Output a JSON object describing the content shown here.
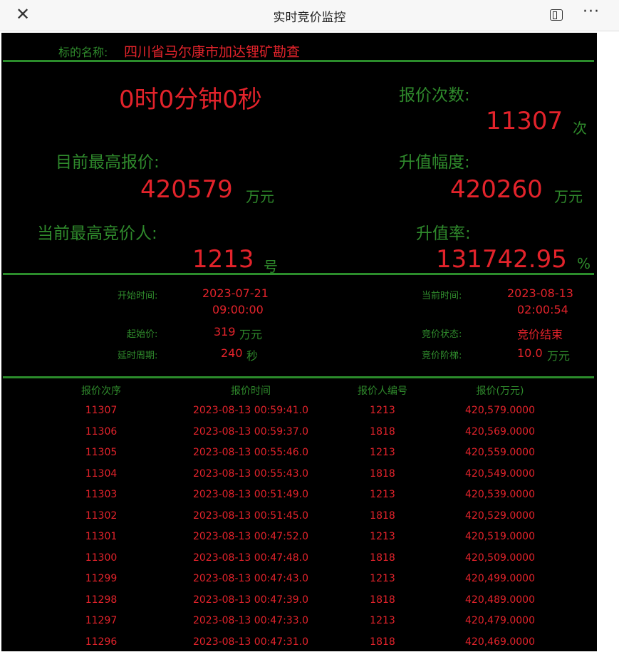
{
  "window": {
    "title": "实时竞价监控",
    "close_icon": "close-icon",
    "panel_icon": "sidebar-icon",
    "more_icon": "more-icon"
  },
  "subject": {
    "label": "标的名称:",
    "value": "四川省马尔康市加达锂矿勘查"
  },
  "countdown": "0时0分钟0秒",
  "bid_count": {
    "label": "报价次数:",
    "value": "11307",
    "unit": "次"
  },
  "highest_bid": {
    "label": "目前最高报价:",
    "value": "420579",
    "unit": "万元"
  },
  "increase": {
    "label": "升值幅度:",
    "value": "420260",
    "unit": "万元"
  },
  "highest_bidder": {
    "label": "当前最高竞价人:",
    "value": "1213",
    "unit": "号"
  },
  "increase_rate": {
    "label": "升值率:",
    "value": "131742.95",
    "unit": "%"
  },
  "info": {
    "start_time": {
      "label": "开始时间:",
      "date": "2023-07-21",
      "time": "09:00:00"
    },
    "current_time": {
      "label": "当前时间:",
      "date": "2023-08-13",
      "time": "02:00:54"
    },
    "start_price": {
      "label": "起始价:",
      "value": "319",
      "unit": "万元"
    },
    "status": {
      "label": "竞价状态:",
      "value": "竞价结束"
    },
    "delay": {
      "label": "延时周期:",
      "value": "240",
      "unit": "秒"
    },
    "step": {
      "label": "竞价阶梯:",
      "value": "10.0",
      "unit": "万元"
    }
  },
  "table": {
    "headers": [
      "报价次序",
      "报价时间",
      "报价人编号",
      "报价(万元)"
    ],
    "rows": [
      [
        "11307",
        "2023-08-13 00:59:41.0",
        "1213",
        "420,579.0000"
      ],
      [
        "11306",
        "2023-08-13 00:59:37.0",
        "1818",
        "420,569.0000"
      ],
      [
        "11305",
        "2023-08-13 00:55:46.0",
        "1213",
        "420,559.0000"
      ],
      [
        "11304",
        "2023-08-13 00:55:43.0",
        "1818",
        "420,549.0000"
      ],
      [
        "11303",
        "2023-08-13 00:51:49.0",
        "1213",
        "420,539.0000"
      ],
      [
        "11302",
        "2023-08-13 00:51:45.0",
        "1818",
        "420,529.0000"
      ],
      [
        "11301",
        "2023-08-13 00:47:52.0",
        "1213",
        "420,519.0000"
      ],
      [
        "11300",
        "2023-08-13 00:47:48.0",
        "1818",
        "420,509.0000"
      ],
      [
        "11299",
        "2023-08-13 00:47:43.0",
        "1213",
        "420,499.0000"
      ],
      [
        "11298",
        "2023-08-13 00:47:39.0",
        "1818",
        "420,489.0000"
      ],
      [
        "11297",
        "2023-08-13 00:47:33.0",
        "1213",
        "420,479.0000"
      ],
      [
        "11296",
        "2023-08-13 00:47:31.0",
        "1818",
        "420,469.0000"
      ]
    ]
  },
  "colors": {
    "red": "#e3232b",
    "green": "#2f8a2c",
    "background": "#000000"
  }
}
